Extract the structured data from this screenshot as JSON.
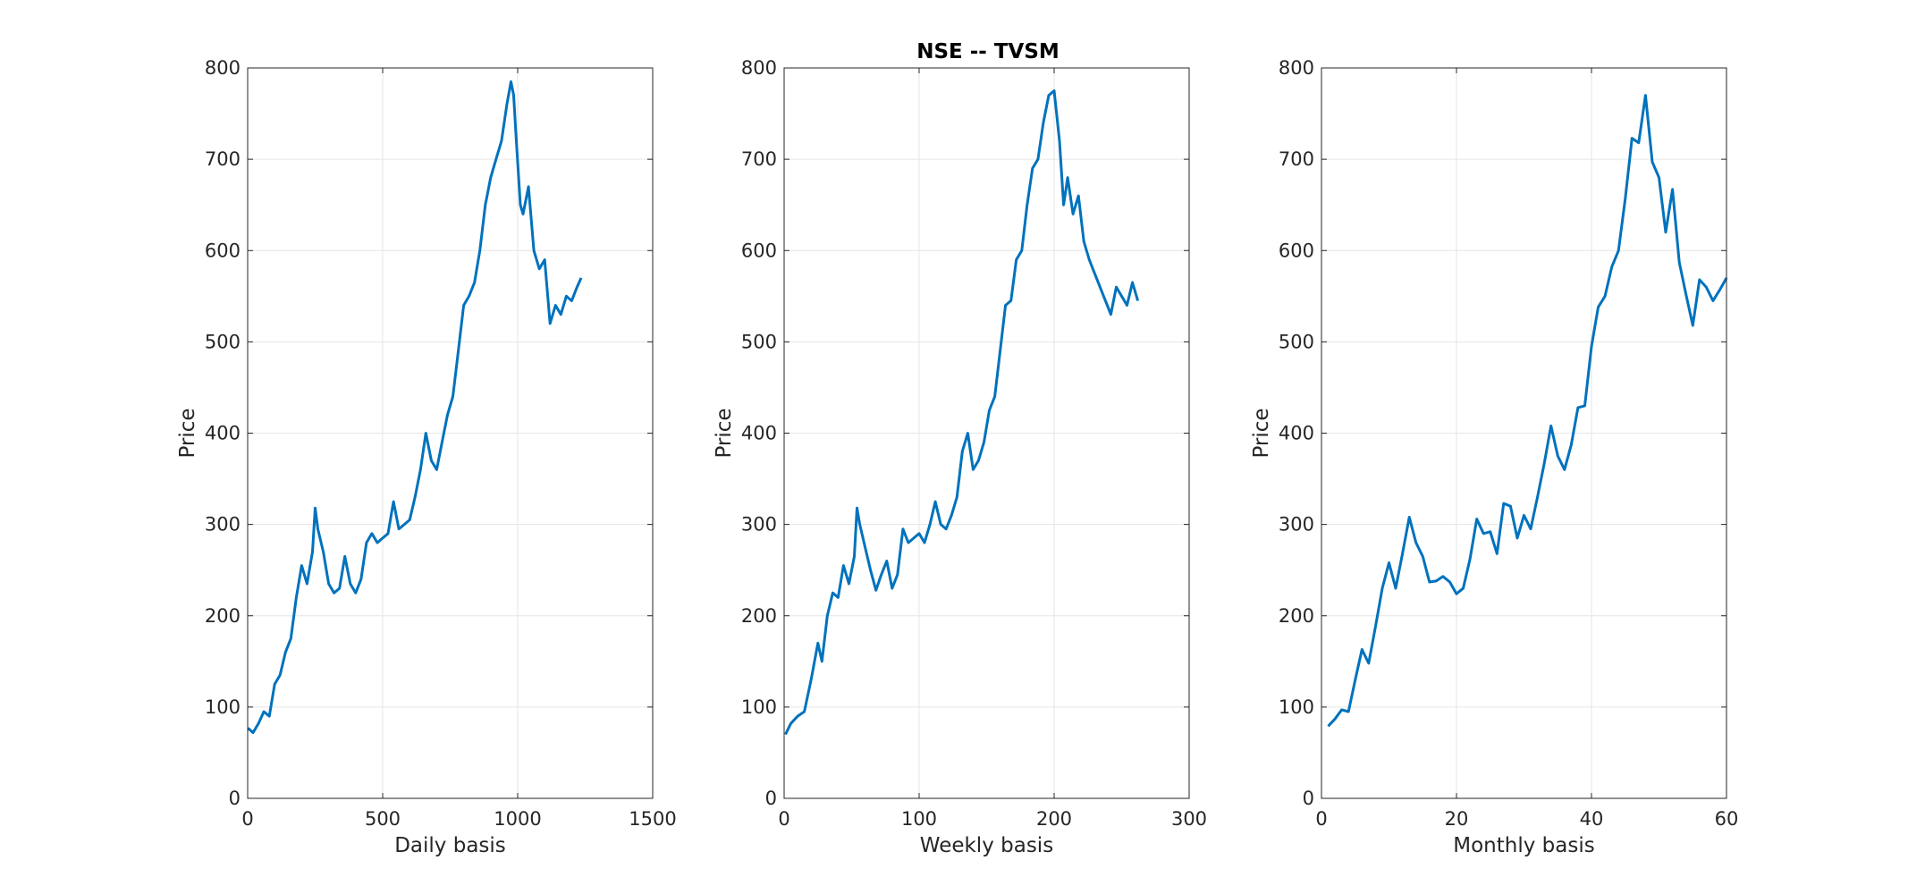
{
  "title": "NSE -- TVSM",
  "colors": {
    "line": "#0072bd",
    "grid": "#e6e6e6",
    "axis": "#262626",
    "background": "#ffffff"
  },
  "chart_data": [
    {
      "type": "line",
      "xlabel": "Daily basis",
      "ylabel": "Price",
      "xlim": [
        0,
        1500
      ],
      "ylim": [
        0,
        800
      ],
      "xticks": [
        0,
        500,
        1000,
        1500
      ],
      "yticks": [
        0,
        100,
        200,
        300,
        400,
        500,
        600,
        700,
        800
      ],
      "grid": true,
      "x": [
        1,
        20,
        40,
        60,
        80,
        100,
        120,
        140,
        160,
        180,
        200,
        220,
        240,
        250,
        260,
        280,
        300,
        320,
        340,
        360,
        380,
        400,
        420,
        440,
        460,
        480,
        500,
        520,
        540,
        560,
        580,
        600,
        620,
        640,
        660,
        680,
        700,
        720,
        740,
        760,
        780,
        800,
        820,
        840,
        860,
        880,
        900,
        920,
        940,
        960,
        975,
        985,
        995,
        1010,
        1020,
        1040,
        1060,
        1080,
        1100,
        1120,
        1140,
        1160,
        1180,
        1200,
        1220,
        1235
      ],
      "values": [
        77,
        72,
        82,
        95,
        90,
        125,
        135,
        160,
        175,
        220,
        255,
        235,
        270,
        318,
        295,
        270,
        235,
        225,
        230,
        265,
        235,
        225,
        240,
        280,
        290,
        280,
        285,
        290,
        325,
        295,
        300,
        305,
        330,
        360,
        400,
        370,
        360,
        390,
        420,
        440,
        490,
        540,
        550,
        565,
        600,
        650,
        680,
        700,
        720,
        760,
        785,
        770,
        720,
        650,
        640,
        670,
        600,
        580,
        590,
        520,
        540,
        530,
        550,
        545,
        560,
        570
      ]
    },
    {
      "type": "line",
      "xlabel": "Weekly basis",
      "ylabel": "Price",
      "xlim": [
        0,
        300
      ],
      "ylim": [
        0,
        800
      ],
      "xticks": [
        0,
        100,
        200,
        300
      ],
      "yticks": [
        0,
        100,
        200,
        300,
        400,
        500,
        600,
        700,
        800
      ],
      "grid": true,
      "x": [
        1,
        5,
        10,
        15,
        20,
        25,
        28,
        32,
        36,
        40,
        44,
        48,
        52,
        54,
        56,
        60,
        64,
        68,
        72,
        76,
        80,
        84,
        88,
        92,
        96,
        100,
        104,
        108,
        112,
        116,
        120,
        124,
        128,
        132,
        136,
        140,
        144,
        148,
        152,
        156,
        160,
        164,
        168,
        172,
        176,
        180,
        184,
        188,
        192,
        196,
        200,
        204,
        207,
        210,
        214,
        218,
        222,
        226,
        230,
        234,
        238,
        242,
        246,
        250,
        254,
        258,
        262
      ],
      "values": [
        70,
        82,
        90,
        95,
        130,
        170,
        150,
        200,
        225,
        220,
        255,
        235,
        265,
        318,
        300,
        275,
        250,
        228,
        245,
        260,
        230,
        245,
        295,
        280,
        285,
        290,
        280,
        300,
        325,
        300,
        295,
        310,
        330,
        380,
        400,
        360,
        370,
        390,
        425,
        440,
        490,
        540,
        545,
        590,
        600,
        650,
        690,
        700,
        740,
        770,
        775,
        720,
        650,
        680,
        640,
        660,
        610,
        590,
        575,
        560,
        545,
        530,
        560,
        550,
        540,
        565,
        545
      ]
    },
    {
      "type": "line",
      "xlabel": "Monthly basis",
      "ylabel": "Price",
      "xlim": [
        0,
        60
      ],
      "ylim": [
        0,
        800
      ],
      "xticks": [
        0,
        20,
        40,
        60
      ],
      "yticks": [
        0,
        100,
        200,
        300,
        400,
        500,
        600,
        700,
        800
      ],
      "grid": true,
      "x": [
        1,
        2,
        3,
        4,
        5,
        6,
        7,
        8,
        9,
        10,
        11,
        12,
        13,
        14,
        15,
        16,
        17,
        18,
        19,
        20,
        21,
        22,
        23,
        24,
        25,
        26,
        27,
        28,
        29,
        30,
        31,
        32,
        33,
        34,
        35,
        36,
        37,
        38,
        39,
        40,
        41,
        42,
        43,
        44,
        45,
        46,
        47,
        48,
        49,
        50,
        51,
        52,
        53,
        54,
        55,
        56,
        57,
        58,
        59,
        60
      ],
      "values": [
        79,
        87,
        97,
        95,
        130,
        163,
        148,
        188,
        230,
        258,
        230,
        268,
        308,
        280,
        265,
        237,
        238,
        243,
        237,
        224,
        230,
        262,
        306,
        290,
        292,
        268,
        323,
        320,
        285,
        310,
        295,
        330,
        367,
        408,
        375,
        360,
        387,
        428,
        430,
        495,
        538,
        550,
        582,
        600,
        657,
        723,
        718,
        770,
        697,
        680,
        620,
        667,
        587,
        552,
        518,
        568,
        560,
        545,
        557,
        570
      ]
    }
  ]
}
